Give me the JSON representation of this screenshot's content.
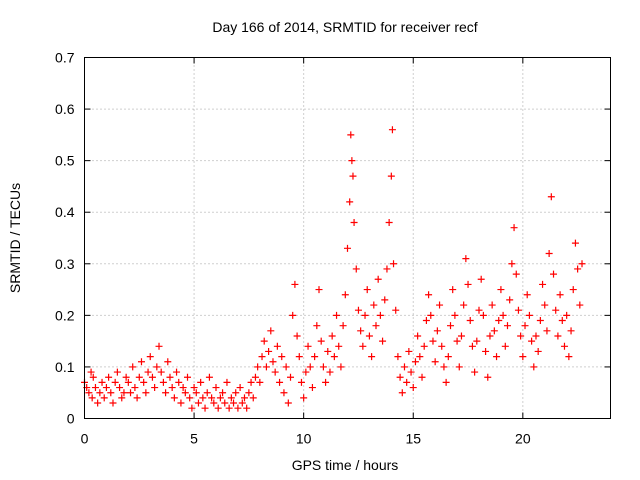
{
  "chart_data": {
    "type": "scatter",
    "title": "Day 166 of 2014, SRMTID for receiver recf",
    "xlabel": "GPS time / hours",
    "ylabel": "SRMTID / TECUs",
    "xlim": [
      0,
      24
    ],
    "ylim": [
      0,
      0.7
    ],
    "xticks": [
      0,
      5,
      10,
      15,
      20
    ],
    "xtick_labels": [
      "0",
      "5",
      "10",
      "15",
      "20"
    ],
    "yticks": [
      0,
      0.1,
      0.2,
      0.3,
      0.4,
      0.5,
      0.6,
      0.7
    ],
    "ytick_labels": [
      "0",
      "0.1",
      "0.2",
      "0.3",
      "0.4",
      "0.5",
      "0.6",
      "0.7"
    ],
    "grid": true,
    "marker": "+",
    "color": "#ff0000",
    "series": [
      {
        "name": "SRMTID",
        "points": [
          [
            0.0,
            0.07
          ],
          [
            0.1,
            0.06
          ],
          [
            0.2,
            0.05
          ],
          [
            0.3,
            0.09
          ],
          [
            0.35,
            0.04
          ],
          [
            0.4,
            0.08
          ],
          [
            0.5,
            0.06
          ],
          [
            0.6,
            0.03
          ],
          [
            0.7,
            0.05
          ],
          [
            0.8,
            0.07
          ],
          [
            0.9,
            0.04
          ],
          [
            1.0,
            0.06
          ],
          [
            1.1,
            0.08
          ],
          [
            1.2,
            0.05
          ],
          [
            1.3,
            0.03
          ],
          [
            1.4,
            0.07
          ],
          [
            1.5,
            0.09
          ],
          [
            1.6,
            0.06
          ],
          [
            1.7,
            0.04
          ],
          [
            1.8,
            0.05
          ],
          [
            1.9,
            0.08
          ],
          [
            2.0,
            0.07
          ],
          [
            2.1,
            0.05
          ],
          [
            2.2,
            0.1
          ],
          [
            2.3,
            0.06
          ],
          [
            2.4,
            0.04
          ],
          [
            2.5,
            0.08
          ],
          [
            2.6,
            0.11
          ],
          [
            2.7,
            0.07
          ],
          [
            2.8,
            0.05
          ],
          [
            2.9,
            0.09
          ],
          [
            3.0,
            0.12
          ],
          [
            3.1,
            0.08
          ],
          [
            3.2,
            0.06
          ],
          [
            3.3,
            0.1
          ],
          [
            3.4,
            0.14
          ],
          [
            3.5,
            0.09
          ],
          [
            3.6,
            0.07
          ],
          [
            3.7,
            0.05
          ],
          [
            3.8,
            0.11
          ],
          [
            3.9,
            0.08
          ],
          [
            4.0,
            0.06
          ],
          [
            4.1,
            0.04
          ],
          [
            4.2,
            0.09
          ],
          [
            4.3,
            0.07
          ],
          [
            4.4,
            0.03
          ],
          [
            4.5,
            0.06
          ],
          [
            4.6,
            0.05
          ],
          [
            4.7,
            0.08
          ],
          [
            4.8,
            0.04
          ],
          [
            4.9,
            0.02
          ],
          [
            5.0,
            0.06
          ],
          [
            5.1,
            0.05
          ],
          [
            5.2,
            0.03
          ],
          [
            5.3,
            0.07
          ],
          [
            5.4,
            0.04
          ],
          [
            5.5,
            0.02
          ],
          [
            5.6,
            0.05
          ],
          [
            5.7,
            0.08
          ],
          [
            5.8,
            0.04
          ],
          [
            5.9,
            0.03
          ],
          [
            6.0,
            0.06
          ],
          [
            6.1,
            0.02
          ],
          [
            6.2,
            0.04
          ],
          [
            6.3,
            0.05
          ],
          [
            6.4,
            0.03
          ],
          [
            6.5,
            0.07
          ],
          [
            6.6,
            0.02
          ],
          [
            6.7,
            0.04
          ],
          [
            6.8,
            0.03
          ],
          [
            6.9,
            0.05
          ],
          [
            7.0,
            0.02
          ],
          [
            7.1,
            0.06
          ],
          [
            7.2,
            0.03
          ],
          [
            7.3,
            0.04
          ],
          [
            7.4,
            0.02
          ],
          [
            7.5,
            0.05
          ],
          [
            7.6,
            0.07
          ],
          [
            7.7,
            0.04
          ],
          [
            7.8,
            0.08
          ],
          [
            7.9,
            0.1
          ],
          [
            8.0,
            0.07
          ],
          [
            8.1,
            0.12
          ],
          [
            8.2,
            0.15
          ],
          [
            8.3,
            0.1
          ],
          [
            8.4,
            0.13
          ],
          [
            8.5,
            0.17
          ],
          [
            8.6,
            0.11
          ],
          [
            8.7,
            0.09
          ],
          [
            8.8,
            0.14
          ],
          [
            8.9,
            0.07
          ],
          [
            9.0,
            0.12
          ],
          [
            9.1,
            0.05
          ],
          [
            9.2,
            0.1
          ],
          [
            9.3,
            0.03
          ],
          [
            9.4,
            0.08
          ],
          [
            9.5,
            0.2
          ],
          [
            9.6,
            0.26
          ],
          [
            9.7,
            0.16
          ],
          [
            9.8,
            0.12
          ],
          [
            9.9,
            0.07
          ],
          [
            10.0,
            0.04
          ],
          [
            10.1,
            0.09
          ],
          [
            10.2,
            0.14
          ],
          [
            10.3,
            0.1
          ],
          [
            10.4,
            0.06
          ],
          [
            10.5,
            0.12
          ],
          [
            10.6,
            0.18
          ],
          [
            10.7,
            0.25
          ],
          [
            10.8,
            0.15
          ],
          [
            10.9,
            0.1
          ],
          [
            11.0,
            0.07
          ],
          [
            11.1,
            0.13
          ],
          [
            11.2,
            0.09
          ],
          [
            11.3,
            0.16
          ],
          [
            11.4,
            0.12
          ],
          [
            11.5,
            0.2
          ],
          [
            11.6,
            0.14
          ],
          [
            11.7,
            0.1
          ],
          [
            11.8,
            0.18
          ],
          [
            11.9,
            0.24
          ],
          [
            12.0,
            0.33
          ],
          [
            12.1,
            0.42
          ],
          [
            12.15,
            0.55
          ],
          [
            12.2,
            0.5
          ],
          [
            12.25,
            0.47
          ],
          [
            12.3,
            0.38
          ],
          [
            12.4,
            0.29
          ],
          [
            12.5,
            0.21
          ],
          [
            12.6,
            0.17
          ],
          [
            12.7,
            0.14
          ],
          [
            12.8,
            0.2
          ],
          [
            12.9,
            0.25
          ],
          [
            13.0,
            0.16
          ],
          [
            13.1,
            0.12
          ],
          [
            13.2,
            0.22
          ],
          [
            13.3,
            0.18
          ],
          [
            13.4,
            0.27
          ],
          [
            13.5,
            0.2
          ],
          [
            13.6,
            0.15
          ],
          [
            13.7,
            0.23
          ],
          [
            13.8,
            0.29
          ],
          [
            13.9,
            0.38
          ],
          [
            14.0,
            0.47
          ],
          [
            14.05,
            0.56
          ],
          [
            14.1,
            0.3
          ],
          [
            14.2,
            0.21
          ],
          [
            14.3,
            0.12
          ],
          [
            14.4,
            0.08
          ],
          [
            14.5,
            0.05
          ],
          [
            14.6,
            0.1
          ],
          [
            14.7,
            0.07
          ],
          [
            14.8,
            0.13
          ],
          [
            14.9,
            0.09
          ],
          [
            15.0,
            0.06
          ],
          [
            15.1,
            0.11
          ],
          [
            15.2,
            0.16
          ],
          [
            15.3,
            0.12
          ],
          [
            15.4,
            0.08
          ],
          [
            15.5,
            0.14
          ],
          [
            15.6,
            0.19
          ],
          [
            15.7,
            0.24
          ],
          [
            15.8,
            0.2
          ],
          [
            15.9,
            0.15
          ],
          [
            16.0,
            0.11
          ],
          [
            16.1,
            0.17
          ],
          [
            16.2,
            0.22
          ],
          [
            16.3,
            0.14
          ],
          [
            16.4,
            0.1
          ],
          [
            16.5,
            0.07
          ],
          [
            16.6,
            0.12
          ],
          [
            16.7,
            0.18
          ],
          [
            16.8,
            0.25
          ],
          [
            16.9,
            0.2
          ],
          [
            17.0,
            0.15
          ],
          [
            17.1,
            0.1
          ],
          [
            17.2,
            0.16
          ],
          [
            17.3,
            0.22
          ],
          [
            17.4,
            0.31
          ],
          [
            17.5,
            0.26
          ],
          [
            17.6,
            0.19
          ],
          [
            17.7,
            0.14
          ],
          [
            17.8,
            0.09
          ],
          [
            17.9,
            0.15
          ],
          [
            18.0,
            0.21
          ],
          [
            18.1,
            0.27
          ],
          [
            18.2,
            0.2
          ],
          [
            18.3,
            0.13
          ],
          [
            18.4,
            0.08
          ],
          [
            18.5,
            0.16
          ],
          [
            18.6,
            0.22
          ],
          [
            18.7,
            0.17
          ],
          [
            18.8,
            0.12
          ],
          [
            18.9,
            0.19
          ],
          [
            19.0,
            0.25
          ],
          [
            19.1,
            0.2
          ],
          [
            19.2,
            0.14
          ],
          [
            19.3,
            0.18
          ],
          [
            19.4,
            0.23
          ],
          [
            19.5,
            0.3
          ],
          [
            19.6,
            0.37
          ],
          [
            19.7,
            0.28
          ],
          [
            19.8,
            0.21
          ],
          [
            19.9,
            0.16
          ],
          [
            20.0,
            0.12
          ],
          [
            20.1,
            0.18
          ],
          [
            20.2,
            0.24
          ],
          [
            20.3,
            0.2
          ],
          [
            20.4,
            0.15
          ],
          [
            20.5,
            0.1
          ],
          [
            20.6,
            0.16
          ],
          [
            20.7,
            0.13
          ],
          [
            20.8,
            0.19
          ],
          [
            20.9,
            0.26
          ],
          [
            21.0,
            0.22
          ],
          [
            21.1,
            0.17
          ],
          [
            21.2,
            0.32
          ],
          [
            21.3,
            0.43
          ],
          [
            21.4,
            0.28
          ],
          [
            21.5,
            0.21
          ],
          [
            21.6,
            0.16
          ],
          [
            21.7,
            0.24
          ],
          [
            21.8,
            0.19
          ],
          [
            21.9,
            0.14
          ],
          [
            22.0,
            0.2
          ],
          [
            22.1,
            0.12
          ],
          [
            22.2,
            0.17
          ],
          [
            22.3,
            0.25
          ],
          [
            22.4,
            0.34
          ],
          [
            22.5,
            0.29
          ],
          [
            22.6,
            0.22
          ],
          [
            22.7,
            0.3
          ]
        ]
      }
    ]
  }
}
